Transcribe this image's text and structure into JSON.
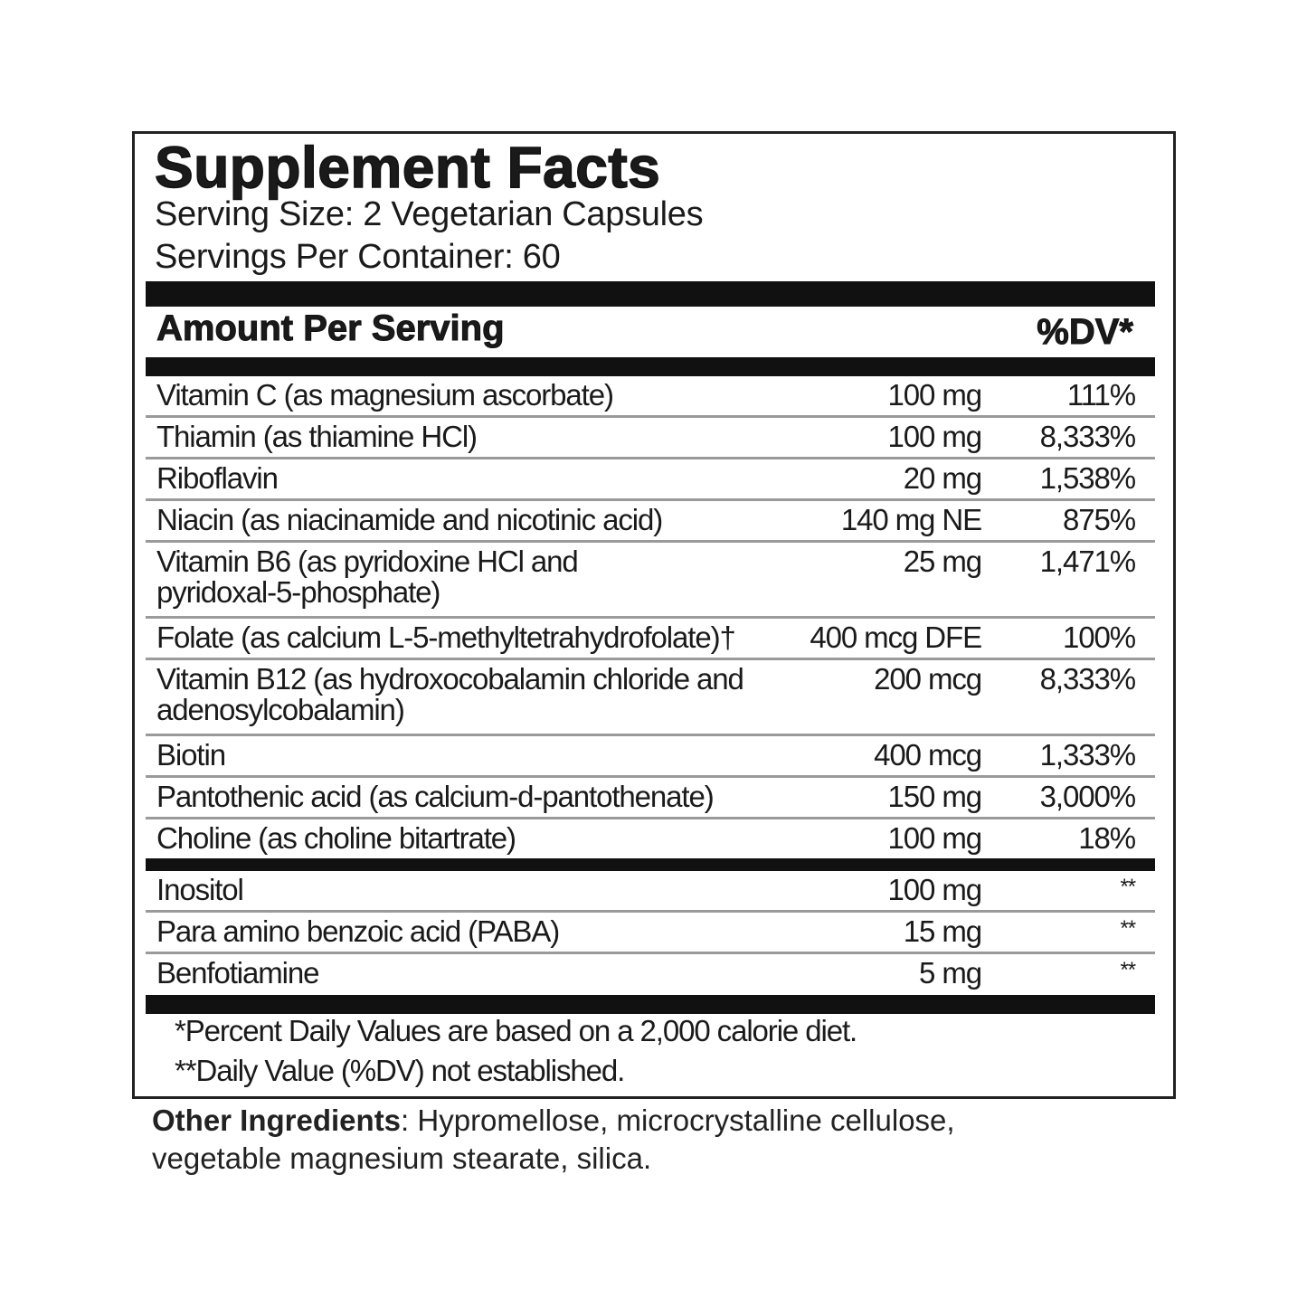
{
  "title": "Supplement Facts",
  "serving_size": "Serving Size: 2 Vegetarian Capsules",
  "servings_per_container": "Servings Per Container: 60",
  "header": {
    "amount_label": "Amount Per Serving",
    "dv_label": "%DV*"
  },
  "nutrients": [
    {
      "name": "Vitamin C (as magnesium ascorbate)",
      "amount": "100 mg",
      "dv": "111%"
    },
    {
      "name": "Thiamin (as thiamine HCl)",
      "amount": "100 mg",
      "dv": "8,333%"
    },
    {
      "name": "Riboflavin",
      "amount": "20 mg",
      "dv": "1,538%"
    },
    {
      "name": "Niacin (as niacinamide and nicotinic acid)",
      "amount": "140 mg NE",
      "dv": "875%"
    },
    {
      "name": "Vitamin B6 (as pyridoxine HCl and",
      "name2": "pyridoxal-5-phosphate)",
      "amount": "25 mg",
      "dv": "1,471%"
    },
    {
      "name": "Folate (as calcium L-5-methyltetrahydrofolate)†",
      "amount": "400 mcg DFE",
      "dv": "100%"
    },
    {
      "name": "Vitamin B12 (as hydroxocobalamin chloride and",
      "name2": "adenosylcobalamin)",
      "amount": "200 mcg",
      "dv": "8,333%"
    },
    {
      "name": "Biotin",
      "amount": "400 mcg",
      "dv": "1,333%"
    },
    {
      "name": "Pantothenic acid (as calcium-d-pantothenate)",
      "amount": "150 mg",
      "dv": "3,000%"
    },
    {
      "name": "Choline (as choline bitartrate)",
      "amount": "100 mg",
      "dv": "18%"
    }
  ],
  "others": [
    {
      "name": "Inositol",
      "amount": "100 mg",
      "dv": "**"
    },
    {
      "name": "Para amino benzoic acid (PABA)",
      "amount": "15 mg",
      "dv": "**"
    },
    {
      "name": "Benfotiamine",
      "amount": "5 mg",
      "dv": "**"
    }
  ],
  "footnotes": [
    "*Percent Daily Values are based on a 2,000 calorie diet.",
    "**Daily Value (%DV) not established."
  ],
  "other_ingredients": {
    "label": "Other Ingredients",
    "line1": ": Hypromellose, microcrystalline cellulose,",
    "line2": "vegetable magnesium stearate, silica."
  }
}
